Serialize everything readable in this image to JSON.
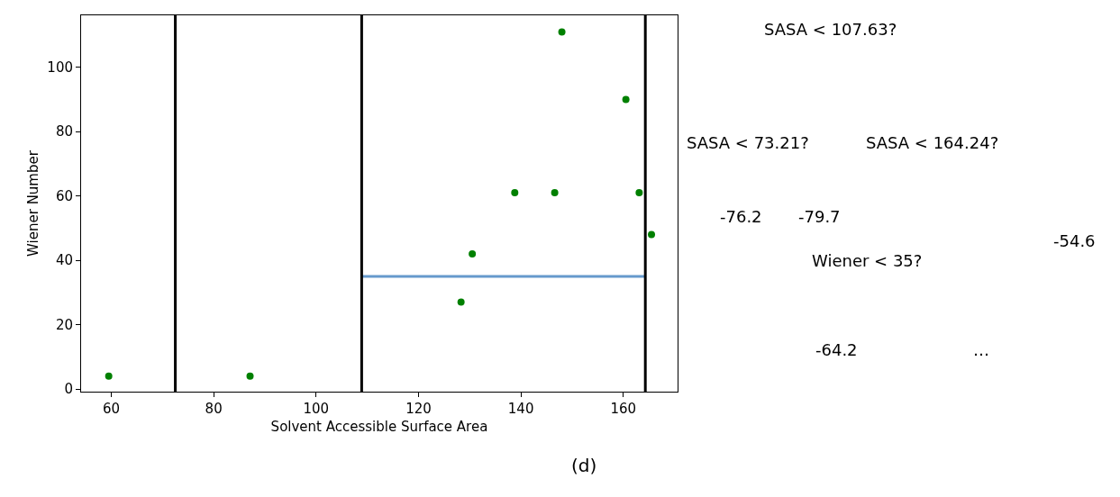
{
  "chart_data": [
    {
      "type": "scatter",
      "xlabel": "Solvent Accessible Surface Area",
      "ylabel": "Wiener Number",
      "annotations": [
        "(d)"
      ],
      "x": [
        59.5,
        87.1,
        128.3,
        130.5,
        138.8,
        146.6,
        148,
        160.5,
        163.1,
        165.5
      ],
      "series": [
        {
          "type": "scatter",
          "color": "#008000",
          "marker": "circle",
          "values": [
            4,
            4,
            27,
            42,
            61,
            61,
            111,
            90,
            61,
            48
          ]
        },
        {
          "type": "line",
          "color": "#6699cc",
          "marker": "none",
          "line_style": "solid",
          "x": [
            108.9,
            164.3
          ],
          "values": [
            35,
            35
          ]
        }
      ],
      "ref_lines": [
        {
          "axis": "x",
          "value": 72.5,
          "color": "#000000"
        },
        {
          "axis": "x",
          "value": 108.9,
          "color": "#000000"
        },
        {
          "axis": "x",
          "value": 164.3,
          "color": "#000000"
        }
      ],
      "xlim": [
        54.1,
        170.6
      ],
      "xticks": [
        60,
        80,
        100,
        120,
        140,
        160
      ],
      "ylim": [
        -0.9,
        116.2
      ],
      "yticks": [
        0,
        20,
        40,
        60,
        80,
        100
      ]
    },
    {
      "type": "other",
      "annotations": [
        "SASA < 107.63?",
        "SASA < 73.21?",
        "SASA < 164.24?",
        "-76.2",
        "-79.7",
        "Wiener < 35?",
        "-54.6",
        "-64.2",
        "…"
      ]
    }
  ]
}
